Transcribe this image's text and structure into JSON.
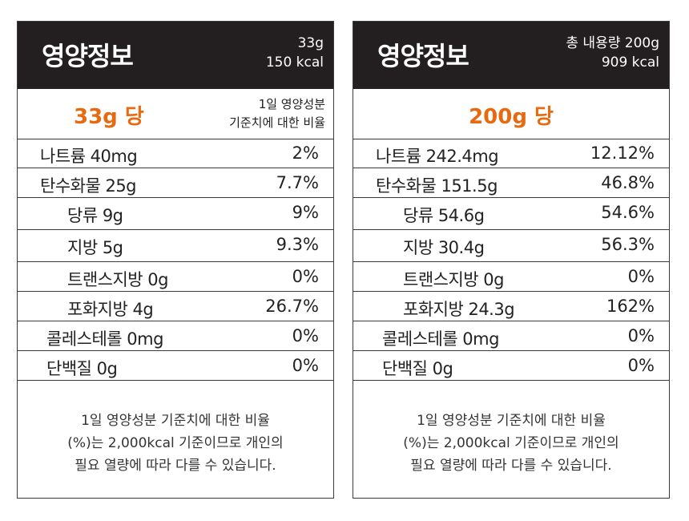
{
  "panels": [
    {
      "title": "영양정보",
      "meta_line1": "33g",
      "meta_line2": "150 kcal",
      "serving_size": "33g 당",
      "note_line1": "1일 영양성분",
      "note_line2": "기준치에 대한 비율",
      "rows": [
        {
          "label": "나트륨 40mg",
          "pct": "2%"
        },
        {
          "label": "탄수화물 25g",
          "pct": "7.7%"
        },
        {
          "label": "당류 9g",
          "pct": "9%"
        },
        {
          "label": "지방 5g",
          "pct": "9.3%"
        },
        {
          "label": "트랜스지방 0g",
          "pct": "0%"
        },
        {
          "label": "포화지방 4g",
          "pct": "26.7%"
        },
        {
          "label": "콜레스테롤 0mg",
          "pct": "0%"
        },
        {
          "label": "단백질 0g",
          "pct": "0%"
        }
      ],
      "footnote_line1": "1일 영양성분 기준치에 대한 비율",
      "footnote_line2": "(%)는 2,000kcal 기준이므로 개인의",
      "footnote_line3": "필요 열량에 따라 다를 수 있습니다."
    },
    {
      "title": "영양정보",
      "meta_line1": "총 내용량 200g",
      "meta_line2": "909 kcal",
      "serving_size": "200g 당",
      "rows": [
        {
          "label": "나트륨 242.4mg",
          "pct": "12.12%"
        },
        {
          "label": "탄수화물 151.5g",
          "pct": "46.8%"
        },
        {
          "label": "당류 54.6g",
          "pct": "54.6%"
        },
        {
          "label": "지방 30.4g",
          "pct": "56.3%"
        },
        {
          "label": "트랜스지방 0g",
          "pct": "0%"
        },
        {
          "label": "포화지방 24.3g",
          "pct": "162%"
        },
        {
          "label": "콜레스테롤 0mg",
          "pct": "0%"
        },
        {
          "label": "단백질 0g",
          "pct": "0%"
        }
      ],
      "footnote_line1": "1일 영양성분 기준치에 대한 비율",
      "footnote_line2": "(%)는 2,000kcal 기준이므로 개인의",
      "footnote_line3": "필요 열량에 따라 다를 수 있습니다."
    }
  ],
  "colors": {
    "header_bg": "#231f20",
    "accent": "#e86a10",
    "border": "#3a3a3a"
  }
}
